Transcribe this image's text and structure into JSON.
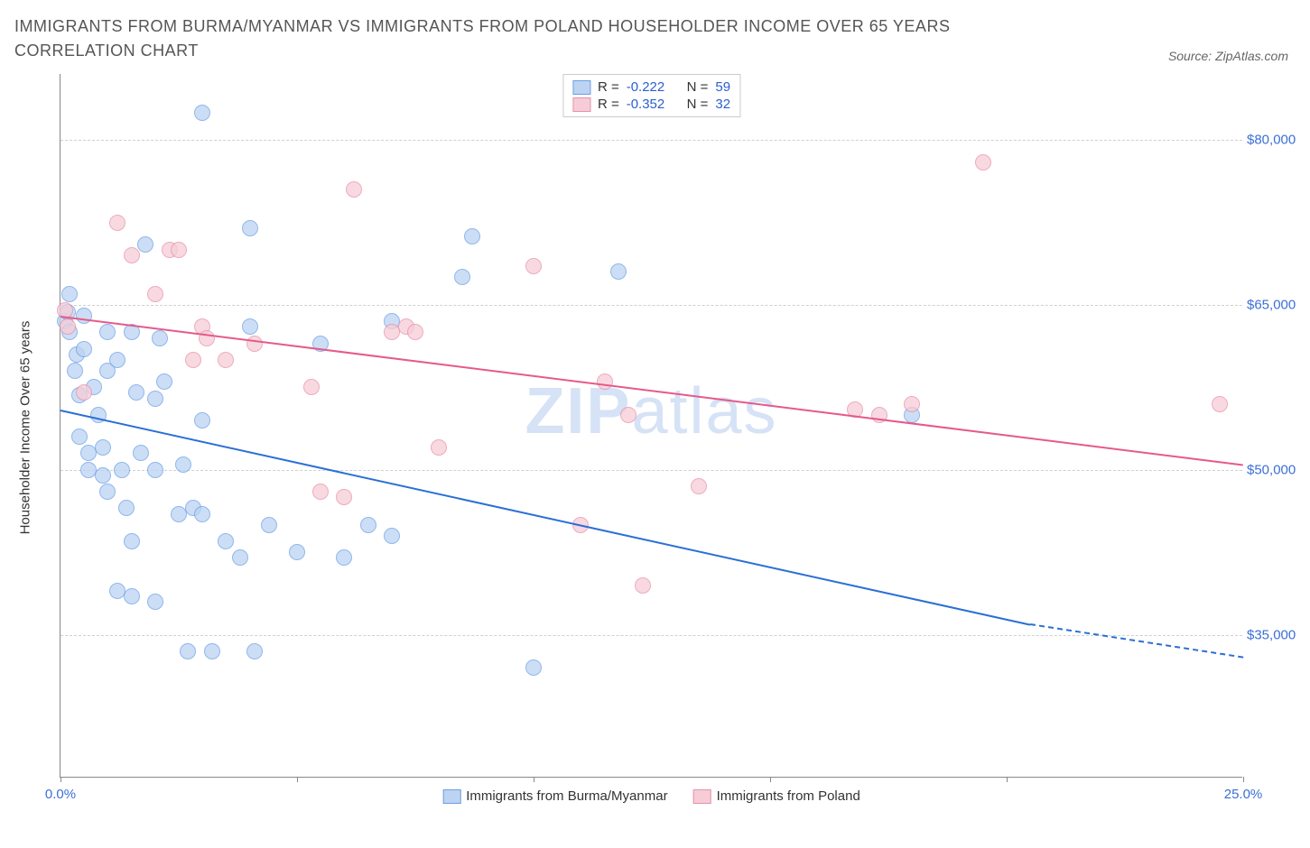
{
  "title": "IMMIGRANTS FROM BURMA/MYANMAR VS IMMIGRANTS FROM POLAND HOUSEHOLDER INCOME OVER 65 YEARS CORRELATION CHART",
  "source_prefix": "Source: ",
  "source_name": "ZipAtlas.com",
  "watermark_bold": "ZIP",
  "watermark_light": "atlas",
  "chart": {
    "type": "scatter",
    "y_axis_title": "Householder Income Over 65 years",
    "background_color": "#ffffff",
    "grid_color": "#d0d0d0",
    "axis_color": "#888888",
    "label_color": "#3b6fd6",
    "label_fontsize": 15,
    "xlim": [
      0,
      25
    ],
    "ylim": [
      22000,
      86000
    ],
    "x_ticks": [
      0,
      5,
      10,
      15,
      20,
      25
    ],
    "x_tick_labels_shown": {
      "0": "0.0%",
      "25": "25.0%"
    },
    "y_ticks": [
      35000,
      50000,
      65000,
      80000
    ],
    "y_tick_labels": [
      "$35,000",
      "$50,000",
      "$65,000",
      "$80,000"
    ],
    "point_radius": 9,
    "point_opacity": 0.75,
    "series": [
      {
        "key": "burma",
        "label": "Immigrants from Burma/Myanmar",
        "fill_color": "#bcd3f2",
        "border_color": "#6b9fe6",
        "line_color": "#2b6fd6",
        "r_value": "-0.222",
        "n_value": "59",
        "trend": {
          "x1": 0,
          "y1": 55500,
          "x2": 20.5,
          "y2": 36000,
          "dashed_ext_x": 25,
          "dashed_ext_y": 33000
        },
        "points": [
          [
            0.1,
            63500
          ],
          [
            0.15,
            64300
          ],
          [
            0.2,
            66000
          ],
          [
            0.2,
            62500
          ],
          [
            0.3,
            59000
          ],
          [
            0.35,
            60500
          ],
          [
            0.4,
            56800
          ],
          [
            0.4,
            53000
          ],
          [
            0.5,
            61000
          ],
          [
            0.5,
            64000
          ],
          [
            0.6,
            51500
          ],
          [
            0.6,
            50000
          ],
          [
            0.7,
            57500
          ],
          [
            0.8,
            55000
          ],
          [
            0.9,
            52000
          ],
          [
            0.9,
            49500
          ],
          [
            1.0,
            48000
          ],
          [
            1.0,
            62500
          ],
          [
            1.0,
            59000
          ],
          [
            1.2,
            39000
          ],
          [
            1.2,
            60000
          ],
          [
            1.3,
            50000
          ],
          [
            1.4,
            46500
          ],
          [
            1.5,
            43500
          ],
          [
            1.5,
            38500
          ],
          [
            1.5,
            62500
          ],
          [
            1.6,
            57000
          ],
          [
            1.7,
            51500
          ],
          [
            1.8,
            70500
          ],
          [
            2.0,
            50000
          ],
          [
            2.0,
            38000
          ],
          [
            2.0,
            56500
          ],
          [
            2.1,
            62000
          ],
          [
            2.2,
            58000
          ],
          [
            2.5,
            46000
          ],
          [
            2.6,
            50500
          ],
          [
            2.7,
            33500
          ],
          [
            2.8,
            46500
          ],
          [
            3.0,
            46000
          ],
          [
            3.0,
            54500
          ],
          [
            3.0,
            82500
          ],
          [
            3.2,
            33500
          ],
          [
            3.5,
            43500
          ],
          [
            3.8,
            42000
          ],
          [
            4.0,
            63000
          ],
          [
            4.0,
            72000
          ],
          [
            4.1,
            33500
          ],
          [
            4.4,
            45000
          ],
          [
            5.0,
            42500
          ],
          [
            5.5,
            61500
          ],
          [
            6.0,
            42000
          ],
          [
            6.5,
            45000
          ],
          [
            7.0,
            44000
          ],
          [
            8.5,
            67500
          ],
          [
            8.7,
            71200
          ],
          [
            10.0,
            32000
          ],
          [
            11.8,
            68000
          ],
          [
            18.0,
            55000
          ],
          [
            7.0,
            63500
          ]
        ]
      },
      {
        "key": "poland",
        "label": "Immigrants from Poland",
        "fill_color": "#f6cdd7",
        "border_color": "#e890a8",
        "line_color": "#e55a8a",
        "r_value": "-0.352",
        "n_value": "32",
        "trend": {
          "x1": 0,
          "y1": 64000,
          "x2": 25,
          "y2": 50500
        },
        "points": [
          [
            0.1,
            64500
          ],
          [
            0.15,
            63000
          ],
          [
            0.5,
            57000
          ],
          [
            1.2,
            72500
          ],
          [
            1.5,
            69500
          ],
          [
            2.0,
            66000
          ],
          [
            2.3,
            70000
          ],
          [
            2.5,
            70000
          ],
          [
            2.8,
            60000
          ],
          [
            3.0,
            63000
          ],
          [
            3.1,
            62000
          ],
          [
            3.5,
            60000
          ],
          [
            4.1,
            61500
          ],
          [
            5.3,
            57500
          ],
          [
            5.5,
            48000
          ],
          [
            6.0,
            47500
          ],
          [
            6.2,
            75500
          ],
          [
            7.0,
            62500
          ],
          [
            7.3,
            63000
          ],
          [
            7.5,
            62500
          ],
          [
            8.0,
            52000
          ],
          [
            10.0,
            68500
          ],
          [
            11.0,
            45000
          ],
          [
            11.5,
            58000
          ],
          [
            12.0,
            55000
          ],
          [
            12.3,
            39500
          ],
          [
            13.5,
            48500
          ],
          [
            16.8,
            55500
          ],
          [
            17.3,
            55000
          ],
          [
            18.0,
            56000
          ],
          [
            19.5,
            78000
          ],
          [
            24.5,
            56000
          ]
        ]
      }
    ],
    "legend_stats_labels": {
      "r": "R =",
      "n": "N ="
    }
  }
}
